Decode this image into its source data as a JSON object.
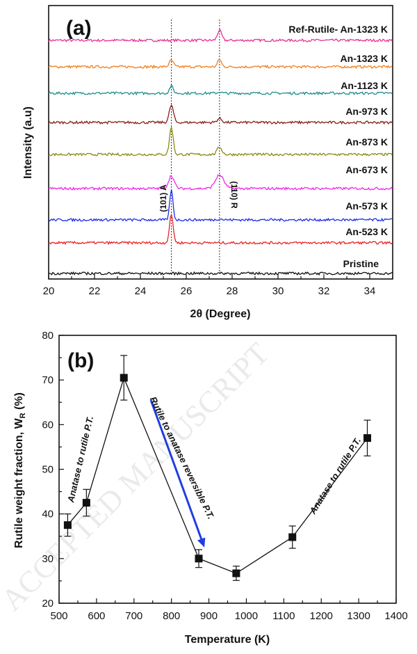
{
  "chart_data": [
    {
      "type": "line",
      "panel_label": "(a)",
      "xlabel": "2θ (Degree)",
      "ylabel": "Intensity (a.u)",
      "xlim": [
        20,
        35
      ],
      "x_ticks": [
        20,
        22,
        24,
        26,
        28,
        30,
        32,
        34
      ],
      "reference_lines": [
        25.35,
        27.45
      ],
      "peak_labels": [
        "(101) A",
        "(110) R"
      ],
      "series": [
        {
          "name": "Ref-Rutile- An-1323 K",
          "color": "#e8309a",
          "offset": 8,
          "peaks": [
            {
              "x": 27.45,
              "h": 0.55,
              "w": 0.09
            }
          ]
        },
        {
          "name": "An-1323 K",
          "color": "#f07f1e",
          "offset": 7,
          "peaks": [
            {
              "x": 25.35,
              "h": 0.35,
              "w": 0.09
            },
            {
              "x": 27.45,
              "h": 0.42,
              "w": 0.08
            }
          ]
        },
        {
          "name": "An-1123 K",
          "color": "#1f8f8a",
          "offset": 6,
          "peaks": [
            {
              "x": 25.35,
              "h": 0.4,
              "w": 0.08
            },
            {
              "x": 27.45,
              "h": 0.07,
              "w": 0.08
            }
          ]
        },
        {
          "name": "An-973 K",
          "color": "#8a1c1c",
          "offset": 5,
          "peaks": [
            {
              "x": 25.35,
              "h": 0.95,
              "w": 0.09
            },
            {
              "x": 27.45,
              "h": 0.22,
              "w": 0.1
            }
          ]
        },
        {
          "name": "An-873 K",
          "color": "#8a8a10",
          "offset": 4,
          "peaks": [
            {
              "x": 25.35,
              "h": 1.5,
              "w": 0.08
            },
            {
              "x": 27.45,
              "h": 0.42,
              "w": 0.1
            }
          ]
        },
        {
          "name": "An-673 K",
          "color": "#f028e8",
          "offset": 3,
          "peaks": [
            {
              "x": 25.35,
              "h": 0.7,
              "w": 0.12
            },
            {
              "x": 27.45,
              "h": 0.75,
              "w": 0.18
            }
          ]
        },
        {
          "name": "An-573 K",
          "color": "#1a2ee8",
          "offset": 2,
          "peaks": [
            {
              "x": 25.35,
              "h": 1.65,
              "w": 0.07
            },
            {
              "x": 27.45,
              "h": 0.06,
              "w": 0.1
            }
          ]
        },
        {
          "name": "An-523 K",
          "color": "#e82424",
          "offset": 1,
          "peaks": [
            {
              "x": 25.35,
              "h": 1.55,
              "w": 0.08
            }
          ]
        },
        {
          "name": "Pristine",
          "color": "#111111",
          "offset": 0,
          "peaks": []
        }
      ]
    },
    {
      "type": "line",
      "panel_label": "(b)",
      "xlabel": "Temperature (K)",
      "ylabel": "Rutile weight fraction, W",
      "ylabel_subscript": "R",
      "ylabel_suffix": " (%)",
      "xlim": [
        500,
        1400
      ],
      "ylim": [
        20,
        80
      ],
      "x_ticks": [
        500,
        600,
        700,
        800,
        900,
        1000,
        1100,
        1200,
        1300,
        1400
      ],
      "y_ticks": [
        20,
        30,
        40,
        50,
        60,
        70,
        80
      ],
      "series": [
        {
          "name": "Rutile weight fraction",
          "x": [
            523,
            573,
            673,
            873,
            973,
            1123,
            1323
          ],
          "y": [
            37.5,
            42.5,
            70.5,
            30,
            26.7,
            34.8,
            57
          ],
          "err": [
            2.5,
            3,
            5,
            2,
            1.6,
            2.5,
            4
          ]
        }
      ],
      "annotations": [
        {
          "text": "Anatase to rutile P.T.",
          "near_x": 560,
          "near_y": 49
        },
        {
          "text": "Rutile to anatase reversible P.T.",
          "near_x": 805,
          "near_y": 55
        },
        {
          "text": "Anatase to rutile P.T.",
          "near_x": 1160,
          "near_y": 43
        }
      ],
      "arrow": {
        "from": [
          745,
          65.5
        ],
        "to": [
          888,
          32.5
        ],
        "color": "#1f3fe0"
      }
    }
  ],
  "watermark": "ACCEPTED MANUSCRIPT"
}
